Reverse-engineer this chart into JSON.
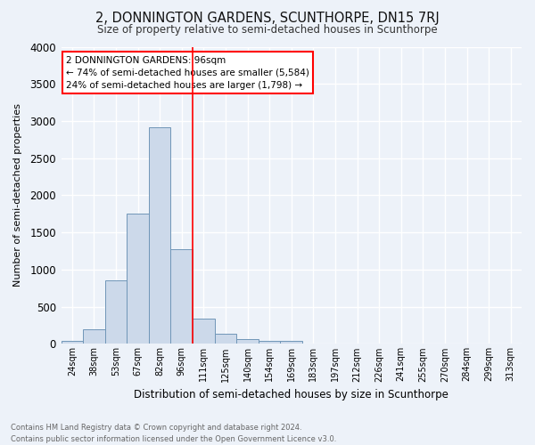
{
  "title": "2, DONNINGTON GARDENS, SCUNTHORPE, DN15 7RJ",
  "subtitle": "Size of property relative to semi-detached houses in Scunthorpe",
  "xlabel": "Distribution of semi-detached houses by size in Scunthorpe",
  "ylabel": "Number of semi-detached properties",
  "bin_labels": [
    "24sqm",
    "38sqm",
    "53sqm",
    "67sqm",
    "82sqm",
    "96sqm",
    "111sqm",
    "125sqm",
    "140sqm",
    "154sqm",
    "169sqm",
    "183sqm",
    "197sqm",
    "212sqm",
    "226sqm",
    "241sqm",
    "255sqm",
    "270sqm",
    "284sqm",
    "299sqm",
    "313sqm"
  ],
  "bar_values": [
    40,
    200,
    850,
    1750,
    2920,
    1280,
    340,
    140,
    65,
    45,
    40,
    0,
    0,
    0,
    0,
    0,
    0,
    0,
    0,
    0,
    0
  ],
  "bar_color": "#ccd9ea",
  "bar_edge_color": "#7096b8",
  "highlight_index": 5,
  "highlight_line_color": "red",
  "annotation_title": "2 DONNINGTON GARDENS: 96sqm",
  "annotation_line1": "← 74% of semi-detached houses are smaller (5,584)",
  "annotation_line2": "24% of semi-detached houses are larger (1,798) →",
  "annotation_box_color": "white",
  "annotation_box_edge_color": "red",
  "ylim": [
    0,
    4000
  ],
  "yticks": [
    0,
    500,
    1000,
    1500,
    2000,
    2500,
    3000,
    3500,
    4000
  ],
  "footer_line1": "Contains HM Land Registry data © Crown copyright and database right 2024.",
  "footer_line2": "Contains public sector information licensed under the Open Government Licence v3.0.",
  "bg_color": "#edf2f9",
  "grid_color": "white"
}
